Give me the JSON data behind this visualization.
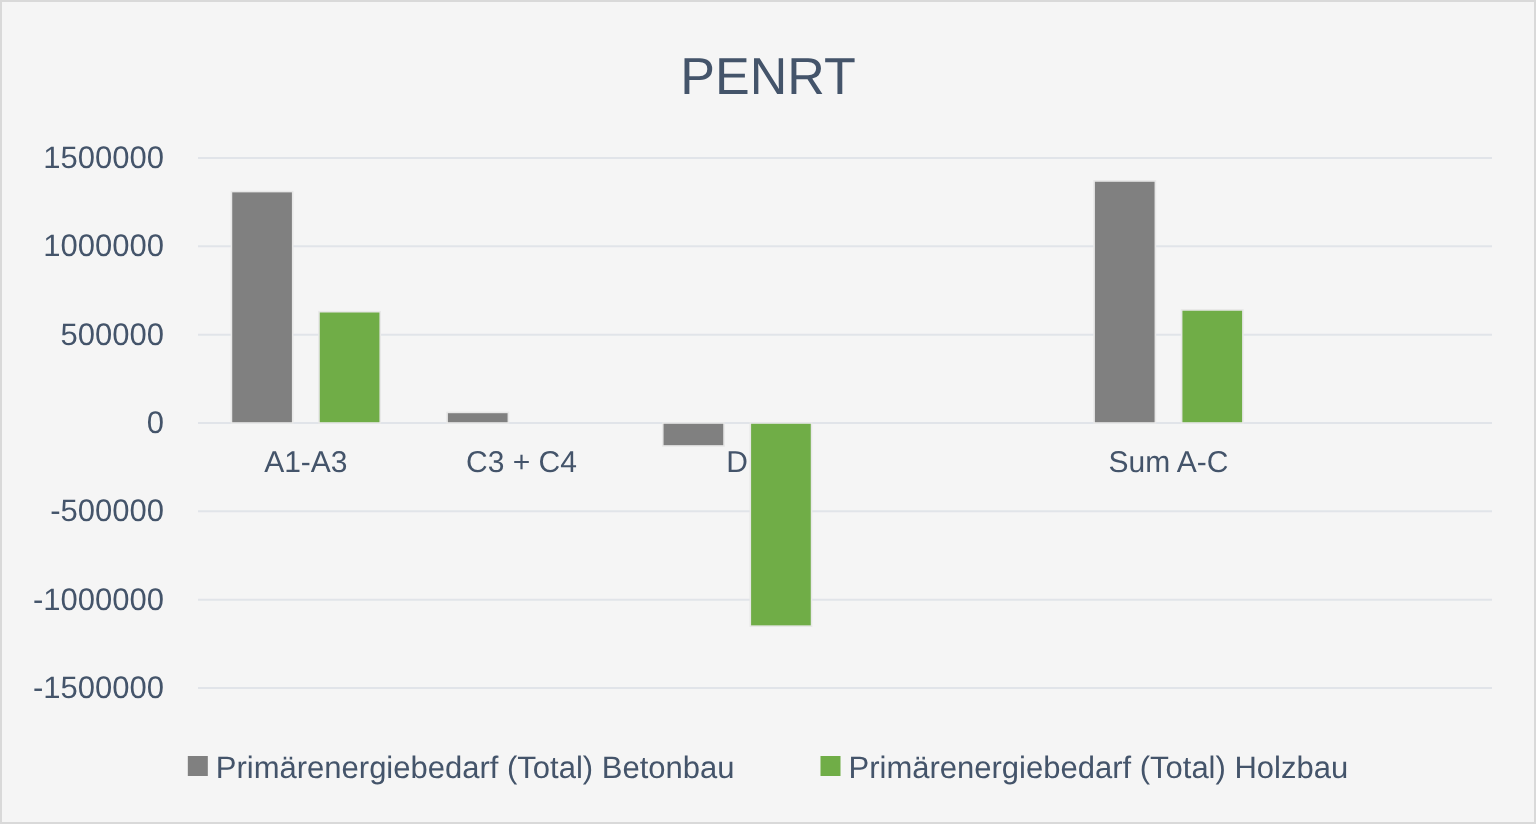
{
  "chart_data": {
    "type": "bar",
    "title": "PENRT",
    "categories": [
      "A1-A3",
      "C3 + C4",
      "D",
      null,
      "Sum A-C",
      null
    ],
    "series": [
      {
        "name": "Primärenergiebedarf (Total) Betonbau",
        "color": "#808080",
        "values": [
          1310000,
          60000,
          -130000,
          null,
          1370000,
          null
        ]
      },
      {
        "name": "Primärenergiebedarf (Total) Holzbau",
        "color": "#70ad47",
        "values": [
          630000,
          null,
          -1150000,
          null,
          640000,
          null
        ]
      }
    ],
    "ylim": [
      -1500000,
      1500000
    ],
    "yticks": [
      -1500000,
      -1000000,
      -500000,
      0,
      500000,
      1000000,
      1500000
    ],
    "grid": "y",
    "legend": "bottom"
  }
}
